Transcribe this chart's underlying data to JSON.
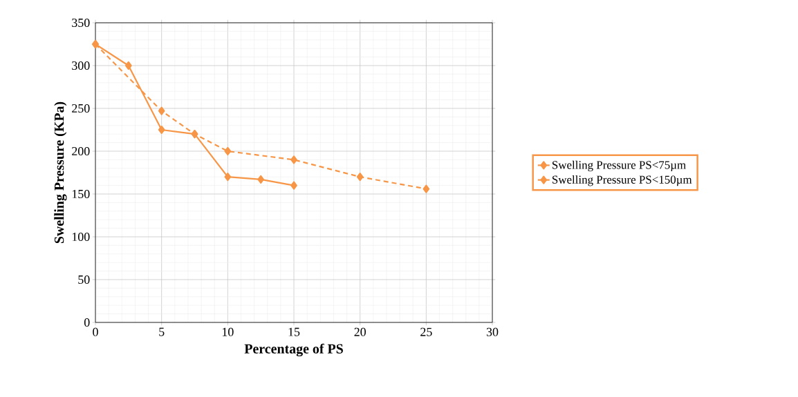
{
  "chart_data": {
    "type": "line",
    "xlabel": "Percentage of PS",
    "ylabel": "Swelling Pressure (KPa)",
    "xlim": [
      0,
      30
    ],
    "xticks": [
      0,
      5,
      10,
      15,
      20,
      25,
      30
    ],
    "ylim": [
      0,
      350
    ],
    "yticks": [
      0,
      50,
      100,
      150,
      200,
      250,
      300,
      350
    ],
    "grid": true,
    "legend": "right",
    "marker": "diamond",
    "series": [
      {
        "name": "Swelling Pressure PS<75µm",
        "color": "#f79646",
        "line_style": "solid",
        "x": [
          0,
          2.5,
          5,
          7.5,
          10,
          12.5,
          15
        ],
        "values": [
          325,
          300,
          225,
          220,
          170,
          167,
          160
        ]
      },
      {
        "name": "Swelling Pressure PS<150µm",
        "color": "#f79646",
        "line_style": "dashed",
        "x": [
          0,
          5,
          7.5,
          10,
          15,
          20,
          25
        ],
        "values": [
          325,
          247,
          220,
          200,
          190,
          170,
          156
        ]
      }
    ]
  }
}
